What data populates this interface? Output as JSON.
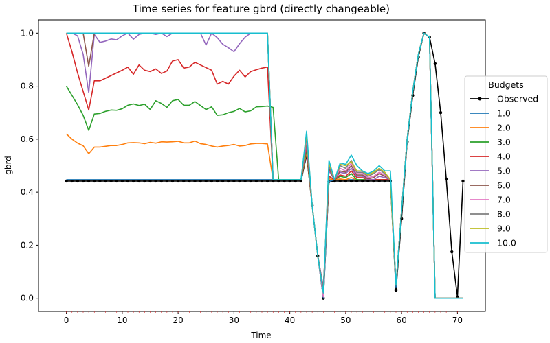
{
  "chart_data": {
    "type": "line",
    "title": "Time series for feature gbrd (directly changeable)",
    "xlabel": "Time",
    "ylabel": "gbrd",
    "xlim": [
      -5,
      75
    ],
    "ylim": [
      -0.05,
      1.05
    ],
    "xticks": [
      0,
      10,
      20,
      30,
      40,
      50,
      60,
      70
    ],
    "yticks": [
      0.0,
      0.2,
      0.4,
      0.6,
      0.8,
      1.0
    ],
    "grid": false,
    "legend": {
      "title": "Budgets",
      "position": "right"
    },
    "series": [
      {
        "name": "Observed",
        "color": "#000000",
        "marker": true,
        "values": [
          0.442,
          0.442,
          0.442,
          0.442,
          0.442,
          0.442,
          0.442,
          0.442,
          0.442,
          0.442,
          0.442,
          0.442,
          0.442,
          0.442,
          0.442,
          0.442,
          0.442,
          0.442,
          0.442,
          0.442,
          0.442,
          0.442,
          0.442,
          0.442,
          0.442,
          0.442,
          0.442,
          0.442,
          0.442,
          0.442,
          0.442,
          0.442,
          0.442,
          0.442,
          0.442,
          0.442,
          0.442,
          0.442,
          0.442,
          0.442,
          0.442,
          0.442,
          0.442,
          0.54,
          0.35,
          0.16,
          0.0,
          0.44,
          0.442,
          0.442,
          0.442,
          0.442,
          0.442,
          0.442,
          0.442,
          0.442,
          0.442,
          0.442,
          0.442,
          0.03,
          0.3,
          0.59,
          0.765,
          0.91,
          1.0,
          0.985,
          0.885,
          0.7,
          0.45,
          0.175,
          0.005,
          0.442
        ]
      },
      {
        "name": "1.0",
        "color": "#1f77b4",
        "values": [
          0.447,
          0.447,
          0.447,
          0.447,
          0.447,
          0.447,
          0.447,
          0.447,
          0.447,
          0.447,
          0.447,
          0.447,
          0.447,
          0.447,
          0.447,
          0.447,
          0.447,
          0.447,
          0.447,
          0.447,
          0.447,
          0.447,
          0.447,
          0.447,
          0.447,
          0.447,
          0.447,
          0.447,
          0.447,
          0.447,
          0.447,
          0.447,
          0.447,
          0.447,
          0.447,
          0.447,
          0.447,
          0.447,
          0.447,
          0.447,
          0.447,
          0.447,
          0.447,
          0.55,
          0.35,
          0.16,
          0.0,
          0.44,
          0.447,
          0.447,
          0.447,
          0.447,
          0.447,
          0.447,
          0.447,
          0.447,
          0.447,
          0.447,
          0.447,
          0.04,
          0.33,
          0.6,
          0.78,
          0.92,
          1.0,
          0.985,
          0.0,
          0.0,
          0.0,
          0.0,
          0.0,
          0.0
        ]
      },
      {
        "name": "2.0",
        "color": "#ff7f0e",
        "values": [
          0.62,
          0.6,
          0.585,
          0.575,
          0.545,
          0.57,
          0.57,
          0.573,
          0.576,
          0.576,
          0.58,
          0.586,
          0.587,
          0.586,
          0.583,
          0.588,
          0.585,
          0.59,
          0.589,
          0.59,
          0.592,
          0.586,
          0.586,
          0.593,
          0.583,
          0.58,
          0.574,
          0.57,
          0.574,
          0.576,
          0.58,
          0.574,
          0.576,
          0.582,
          0.584,
          0.584,
          0.582,
          0.447,
          0.447,
          0.447,
          0.447,
          0.447,
          0.447,
          0.55,
          0.35,
          0.16,
          0.03,
          0.45,
          0.447,
          0.45,
          0.447,
          0.455,
          0.447,
          0.447,
          0.447,
          0.447,
          0.447,
          0.447,
          0.447,
          0.05,
          0.33,
          0.6,
          0.78,
          0.92,
          1.0,
          0.985,
          0.0,
          0.0,
          0.0,
          0.0,
          0.0,
          0.0
        ]
      },
      {
        "name": "3.0",
        "color": "#2ca02c",
        "values": [
          0.8,
          0.765,
          0.73,
          0.69,
          0.633,
          0.695,
          0.697,
          0.705,
          0.71,
          0.709,
          0.715,
          0.728,
          0.733,
          0.727,
          0.732,
          0.712,
          0.745,
          0.735,
          0.72,
          0.745,
          0.75,
          0.728,
          0.728,
          0.742,
          0.727,
          0.712,
          0.722,
          0.69,
          0.692,
          0.7,
          0.705,
          0.716,
          0.703,
          0.707,
          0.722,
          0.723,
          0.725,
          0.72,
          0.447,
          0.447,
          0.447,
          0.447,
          0.447,
          0.56,
          0.35,
          0.16,
          0.04,
          0.46,
          0.447,
          0.46,
          0.455,
          0.47,
          0.447,
          0.447,
          0.447,
          0.447,
          0.447,
          0.447,
          0.447,
          0.05,
          0.33,
          0.6,
          0.78,
          0.92,
          1.0,
          0.985,
          0.0,
          0.0,
          0.0,
          0.0,
          0.0,
          0.0
        ]
      },
      {
        "name": "4.0",
        "color": "#d62728",
        "values": [
          1.0,
          0.93,
          0.85,
          0.78,
          0.71,
          0.82,
          0.82,
          0.83,
          0.84,
          0.85,
          0.86,
          0.872,
          0.845,
          0.88,
          0.86,
          0.855,
          0.865,
          0.848,
          0.857,
          0.895,
          0.9,
          0.868,
          0.872,
          0.89,
          0.88,
          0.87,
          0.86,
          0.808,
          0.818,
          0.808,
          0.838,
          0.86,
          0.835,
          0.855,
          0.862,
          0.868,
          0.872,
          0.447,
          0.447,
          0.447,
          0.447,
          0.447,
          0.447,
          0.57,
          0.35,
          0.16,
          0.04,
          0.46,
          0.447,
          0.465,
          0.46,
          0.48,
          0.455,
          0.455,
          0.447,
          0.447,
          0.447,
          0.447,
          0.447,
          0.05,
          0.33,
          0.6,
          0.78,
          0.92,
          1.0,
          0.985,
          0.0,
          0.0,
          0.0,
          0.0,
          0.0,
          0.0
        ]
      },
      {
        "name": "5.0",
        "color": "#9467bd",
        "values": [
          1.0,
          1.0,
          0.99,
          0.92,
          0.775,
          0.995,
          0.965,
          0.97,
          0.978,
          0.975,
          0.99,
          1.0,
          0.977,
          0.995,
          1.0,
          1.0,
          0.995,
          1.0,
          0.987,
          1.0,
          1.0,
          1.0,
          1.0,
          1.0,
          1.0,
          0.955,
          1.0,
          0.983,
          0.958,
          0.945,
          0.93,
          0.96,
          0.985,
          1.0,
          1.0,
          1.0,
          1.0,
          0.447,
          0.447,
          0.447,
          0.447,
          0.447,
          0.447,
          0.58,
          0.35,
          0.16,
          0.04,
          0.48,
          0.447,
          0.475,
          0.47,
          0.49,
          0.46,
          0.46,
          0.447,
          0.447,
          0.46,
          0.455,
          0.447,
          0.05,
          0.33,
          0.6,
          0.78,
          0.92,
          1.0,
          0.985,
          0.0,
          0.0,
          0.0,
          0.0,
          0.0,
          0.0
        ]
      },
      {
        "name": "6.0",
        "color": "#8c564b",
        "values": [
          1.0,
          1.0,
          1.0,
          1.0,
          0.875,
          1.0,
          1.0,
          1.0,
          1.0,
          1.0,
          1.0,
          1.0,
          1.0,
          1.0,
          1.0,
          1.0,
          1.0,
          1.0,
          1.0,
          1.0,
          1.0,
          1.0,
          1.0,
          1.0,
          1.0,
          1.0,
          1.0,
          1.0,
          1.0,
          1.0,
          1.0,
          1.0,
          1.0,
          1.0,
          1.0,
          1.0,
          1.0,
          0.447,
          0.447,
          0.447,
          0.447,
          0.447,
          0.447,
          0.59,
          0.35,
          0.16,
          0.03,
          0.49,
          0.447,
          0.48,
          0.475,
          0.5,
          0.465,
          0.465,
          0.45,
          0.455,
          0.47,
          0.46,
          0.447,
          0.05,
          0.33,
          0.6,
          0.78,
          0.92,
          1.0,
          0.985,
          0.0,
          0.0,
          0.0,
          0.0,
          0.0,
          0.0
        ]
      },
      {
        "name": "7.0",
        "color": "#e377c2",
        "values": [
          1.0,
          1.0,
          1.0,
          1.0,
          1.0,
          1.0,
          1.0,
          1.0,
          1.0,
          1.0,
          1.0,
          1.0,
          1.0,
          1.0,
          1.0,
          1.0,
          1.0,
          1.0,
          1.0,
          1.0,
          1.0,
          1.0,
          1.0,
          1.0,
          1.0,
          1.0,
          1.0,
          1.0,
          1.0,
          1.0,
          1.0,
          1.0,
          1.0,
          1.0,
          1.0,
          1.0,
          1.0,
          0.447,
          0.447,
          0.447,
          0.447,
          0.447,
          0.447,
          0.6,
          0.35,
          0.16,
          0.005,
          0.5,
          0.447,
          0.49,
          0.48,
          0.51,
          0.47,
          0.47,
          0.455,
          0.46,
          0.475,
          0.465,
          0.447,
          0.05,
          0.33,
          0.6,
          0.78,
          0.92,
          1.0,
          0.985,
          0.0,
          0.0,
          0.0,
          0.0,
          0.0,
          0.0
        ]
      },
      {
        "name": "8.0",
        "color": "#7f7f7f",
        "values": [
          1.0,
          1.0,
          1.0,
          1.0,
          1.0,
          1.0,
          1.0,
          1.0,
          1.0,
          1.0,
          1.0,
          1.0,
          1.0,
          1.0,
          1.0,
          1.0,
          1.0,
          1.0,
          1.0,
          1.0,
          1.0,
          1.0,
          1.0,
          1.0,
          1.0,
          1.0,
          1.0,
          1.0,
          1.0,
          1.0,
          1.0,
          1.0,
          1.0,
          1.0,
          1.0,
          1.0,
          1.0,
          0.447,
          0.447,
          0.447,
          0.447,
          0.447,
          0.447,
          0.61,
          0.35,
          0.16,
          0.02,
          0.5,
          0.447,
          0.5,
          0.49,
          0.52,
          0.475,
          0.475,
          0.46,
          0.47,
          0.485,
          0.47,
          0.447,
          0.05,
          0.33,
          0.6,
          0.78,
          0.92,
          1.0,
          0.985,
          0.0,
          0.0,
          0.0,
          0.0,
          0.0,
          0.0
        ]
      },
      {
        "name": "9.0",
        "color": "#bcbd22",
        "values": [
          1.0,
          1.0,
          1.0,
          1.0,
          1.0,
          1.0,
          1.0,
          1.0,
          1.0,
          1.0,
          1.0,
          1.0,
          1.0,
          1.0,
          1.0,
          1.0,
          1.0,
          1.0,
          1.0,
          1.0,
          1.0,
          1.0,
          1.0,
          1.0,
          1.0,
          1.0,
          1.0,
          1.0,
          1.0,
          1.0,
          1.0,
          1.0,
          1.0,
          1.0,
          1.0,
          1.0,
          1.0,
          0.447,
          0.447,
          0.447,
          0.447,
          0.447,
          0.447,
          0.62,
          0.35,
          0.16,
          0.02,
          0.51,
          0.447,
          0.505,
          0.5,
          0.515,
          0.48,
          0.48,
          0.465,
          0.475,
          0.49,
          0.475,
          0.447,
          0.05,
          0.33,
          0.6,
          0.78,
          0.92,
          1.0,
          0.985,
          0.0,
          0.0,
          0.0,
          0.0,
          0.0,
          0.0
        ]
      },
      {
        "name": "10.0",
        "color": "#17becf",
        "values": [
          1.0,
          1.0,
          1.0,
          1.0,
          1.0,
          1.0,
          1.0,
          1.0,
          1.0,
          1.0,
          1.0,
          1.0,
          1.0,
          1.0,
          1.0,
          1.0,
          1.0,
          1.0,
          1.0,
          1.0,
          1.0,
          1.0,
          1.0,
          1.0,
          1.0,
          1.0,
          1.0,
          1.0,
          1.0,
          1.0,
          1.0,
          1.0,
          1.0,
          1.0,
          1.0,
          1.0,
          1.0,
          0.447,
          0.447,
          0.447,
          0.447,
          0.447,
          0.447,
          0.63,
          0.35,
          0.16,
          0.02,
          0.52,
          0.447,
          0.51,
          0.505,
          0.54,
          0.5,
          0.48,
          0.47,
          0.48,
          0.5,
          0.48,
          0.48,
          0.05,
          0.33,
          0.6,
          0.78,
          0.92,
          1.0,
          0.985,
          0.0,
          0.0,
          0.0,
          0.0,
          0.0,
          0.0
        ]
      }
    ]
  }
}
